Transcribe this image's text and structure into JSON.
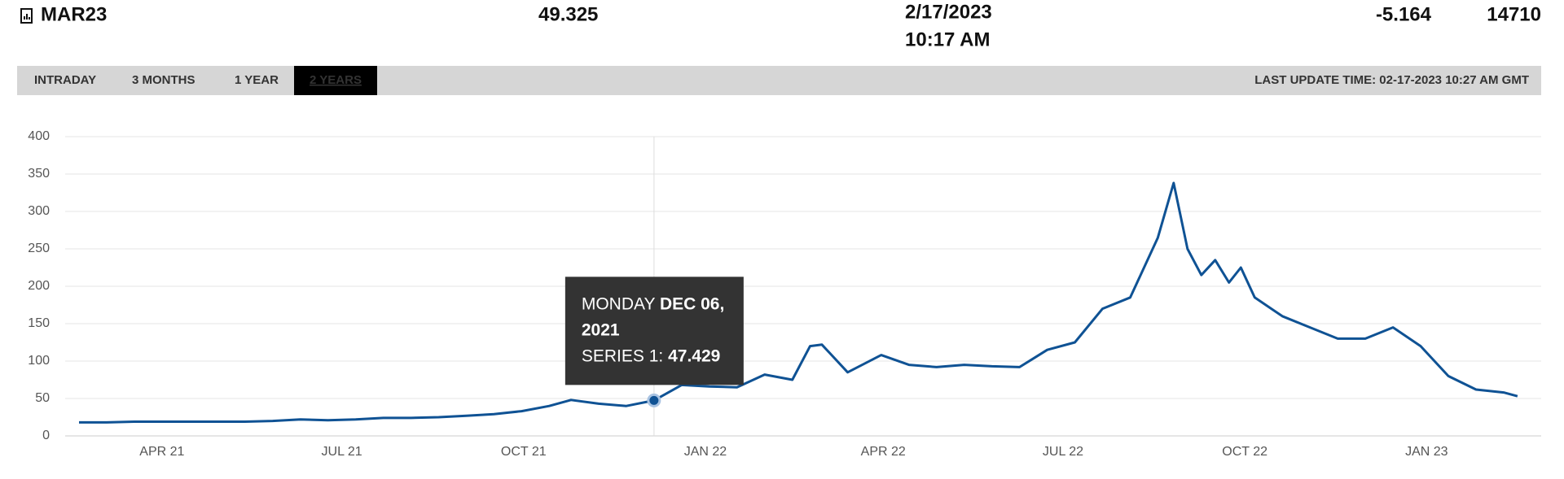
{
  "header": {
    "symbol": "MAR23",
    "last": "49.325",
    "date": "2/17/2023",
    "time": "10:17 AM",
    "change": "-5.164",
    "volume": "14710"
  },
  "tabs": [
    "INTRADAY",
    "3 MONTHS",
    "1 YEAR",
    "2 YEARS"
  ],
  "active_tab": "2 YEARS",
  "last_update": "LAST UPDATE TIME: 02-17-2023 10:27 AM GMT",
  "chart_data": {
    "type": "line",
    "x": [
      "2021-02-18",
      "2021-03-04",
      "2021-03-18",
      "2021-04-01",
      "2021-04-15",
      "2021-04-29",
      "2021-05-13",
      "2021-05-27",
      "2021-06-10",
      "2021-06-24",
      "2021-07-08",
      "2021-07-22",
      "2021-08-05",
      "2021-08-19",
      "2021-09-02",
      "2021-09-16",
      "2021-09-30",
      "2021-10-14",
      "2021-10-25",
      "2021-11-08",
      "2021-11-22",
      "2021-12-06",
      "2021-12-20",
      "2022-01-03",
      "2022-01-17",
      "2022-01-31",
      "2022-02-14",
      "2022-02-23",
      "2022-03-01",
      "2022-03-14",
      "2022-03-31",
      "2022-04-14",
      "2022-04-28",
      "2022-05-12",
      "2022-05-26",
      "2022-06-09",
      "2022-06-23",
      "2022-07-07",
      "2022-07-21",
      "2022-08-04",
      "2022-08-18",
      "2022-08-26",
      "2022-09-02",
      "2022-09-09",
      "2022-09-16",
      "2022-09-23",
      "2022-09-29",
      "2022-10-06",
      "2022-10-20",
      "2022-11-03",
      "2022-11-17",
      "2022-12-01",
      "2022-12-15",
      "2022-12-29",
      "2023-01-12",
      "2023-01-26",
      "2023-02-09",
      "2023-02-16"
    ],
    "series": [
      {
        "name": "SERIES 1",
        "color": "#0f5294",
        "values": [
          18,
          18,
          19,
          19,
          19,
          19,
          19,
          20,
          22,
          21,
          22,
          24,
          24,
          25,
          27,
          29,
          33,
          40,
          48,
          43,
          40,
          47.429,
          68,
          66,
          65,
          82,
          75,
          120,
          122,
          85,
          108,
          95,
          92,
          95,
          93,
          92,
          115,
          125,
          170,
          185,
          265,
          338,
          250,
          215,
          235,
          205,
          225,
          185,
          160,
          145,
          130,
          130,
          145,
          120,
          80,
          62,
          58,
          53
        ]
      }
    ],
    "xlim": [
      "2021-02-11",
      "2023-02-28"
    ],
    "xticks": [
      {
        "value": "2021-04-01",
        "label": "APR 21"
      },
      {
        "value": "2021-07-01",
        "label": "JUL 21"
      },
      {
        "value": "2021-10-01",
        "label": "OCT 21"
      },
      {
        "value": "2022-01-01",
        "label": "JAN 22"
      },
      {
        "value": "2022-04-01",
        "label": "APR 22"
      },
      {
        "value": "2022-07-01",
        "label": "JUL 22"
      },
      {
        "value": "2022-10-01",
        "label": "OCT 22"
      },
      {
        "value": "2023-01-01",
        "label": "JAN 23"
      }
    ],
    "ylim": [
      0,
      400
    ],
    "yticks": [
      0,
      50,
      100,
      150,
      200,
      250,
      300,
      350,
      400
    ],
    "grid": true,
    "tooltip": {
      "index": 21,
      "day": "MONDAY",
      "date": "DEC 06, 2021",
      "series": "SERIES 1:"
    }
  }
}
